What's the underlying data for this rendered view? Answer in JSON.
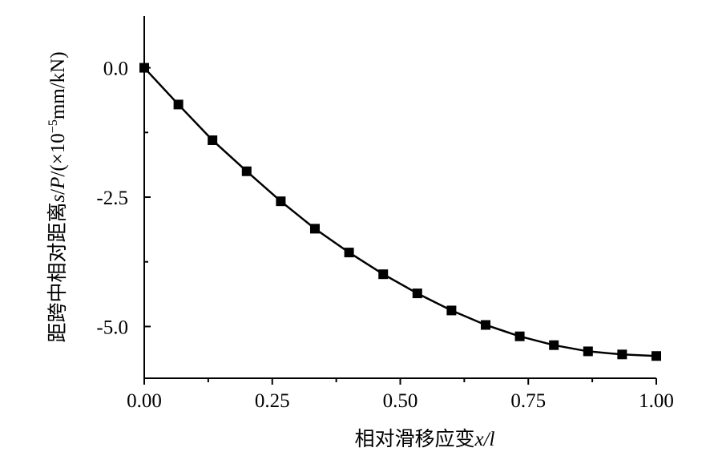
{
  "chart_data": {
    "type": "line",
    "x_label": [
      "相对滑移应变",
      "x/l"
    ],
    "y_label": [
      "距跨中相对距离",
      "s",
      "/",
      "P",
      "/(×10",
      "−5",
      "mm/kN)"
    ],
    "x": [
      0,
      0.0667,
      0.1333,
      0.2,
      0.2667,
      0.3333,
      0.4,
      0.4667,
      0.5333,
      0.6,
      0.6667,
      0.7333,
      0.8,
      0.8667,
      0.9333,
      1.0
    ],
    "series": [
      {
        "color": "#000000",
        "values": [
          0,
          -0.71,
          -1.4,
          -2.0,
          -2.58,
          -3.11,
          -3.57,
          -3.99,
          -4.36,
          -4.69,
          -4.97,
          -5.19,
          -5.36,
          -5.48,
          -5.54,
          -5.57
        ]
      }
    ],
    "xlim": [
      0,
      1
    ],
    "ylim": [
      -6,
      1
    ],
    "xticks": [
      {
        "value": 0,
        "label": "0.00"
      },
      {
        "value": 0.25,
        "label": "0.25"
      },
      {
        "value": 0.5,
        "label": "0.50"
      },
      {
        "value": 0.75,
        "label": "0.75"
      },
      {
        "value": 1,
        "label": "1.00"
      }
    ],
    "yticks": [
      {
        "value": 0,
        "label": "0.0"
      },
      {
        "value": -2.5,
        "label": "-2.5"
      },
      {
        "value": -5,
        "label": "-5.0"
      }
    ],
    "y_minor_ticks": [
      -1.25,
      -3.75
    ],
    "x_minor_ticks": [
      0.125,
      0.375,
      0.625,
      0.875
    ]
  }
}
